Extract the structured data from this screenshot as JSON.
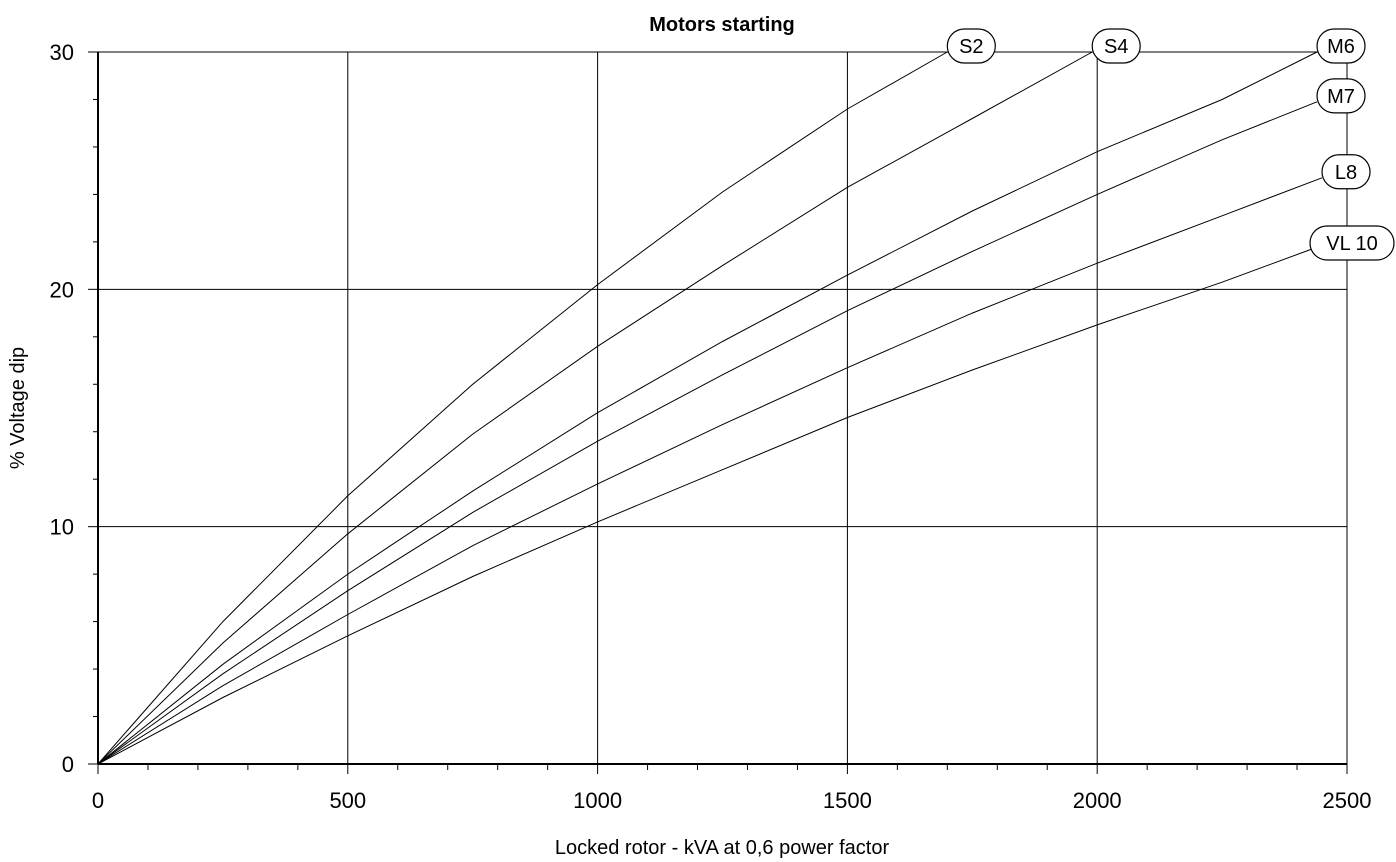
{
  "chart_data": {
    "type": "line",
    "title": "Motors starting",
    "xlabel": "Locked rotor - kVA at 0,6 power factor",
    "ylabel": "% Voltage dip",
    "xlim": [
      0,
      2500
    ],
    "ylim": [
      0,
      30
    ],
    "x_ticks": [
      0,
      500,
      1000,
      1500,
      2000,
      2500
    ],
    "y_ticks": [
      0,
      10,
      20,
      30
    ],
    "grid": true,
    "series": [
      {
        "name": "S2",
        "points": [
          [
            0,
            0
          ],
          [
            250,
            6
          ],
          [
            500,
            11.3
          ],
          [
            750,
            16
          ],
          [
            1000,
            20.2
          ],
          [
            1250,
            24.1
          ],
          [
            1500,
            27.6
          ],
          [
            1700,
            30
          ]
        ]
      },
      {
        "name": "S4",
        "points": [
          [
            0,
            0
          ],
          [
            250,
            5.1
          ],
          [
            500,
            9.7
          ],
          [
            750,
            13.9
          ],
          [
            1000,
            17.6
          ],
          [
            1250,
            21
          ],
          [
            1500,
            24.3
          ],
          [
            1750,
            27.2
          ],
          [
            1990,
            30
          ]
        ]
      },
      {
        "name": "M6",
        "points": [
          [
            0,
            0
          ],
          [
            250,
            4.2
          ],
          [
            500,
            8
          ],
          [
            750,
            11.5
          ],
          [
            1000,
            14.8
          ],
          [
            1250,
            17.8
          ],
          [
            1500,
            20.6
          ],
          [
            1750,
            23.3
          ],
          [
            2000,
            25.8
          ],
          [
            2250,
            28
          ],
          [
            2440,
            30
          ]
        ]
      },
      {
        "name": "M7",
        "points": [
          [
            0,
            0
          ],
          [
            250,
            3.8
          ],
          [
            500,
            7.3
          ],
          [
            750,
            10.6
          ],
          [
            1000,
            13.6
          ],
          [
            1250,
            16.4
          ],
          [
            1500,
            19.1
          ],
          [
            1750,
            21.6
          ],
          [
            2000,
            24
          ],
          [
            2250,
            26.3
          ],
          [
            2440,
            27.9
          ]
        ]
      },
      {
        "name": "L8",
        "points": [
          [
            0,
            0
          ],
          [
            250,
            3.3
          ],
          [
            500,
            6.3
          ],
          [
            750,
            9.2
          ],
          [
            1000,
            11.8
          ],
          [
            1250,
            14.3
          ],
          [
            1500,
            16.7
          ],
          [
            1750,
            19
          ],
          [
            2000,
            21.1
          ],
          [
            2250,
            23.1
          ],
          [
            2450,
            24.7
          ]
        ]
      },
      {
        "name": "VL 10",
        "points": [
          [
            0,
            0
          ],
          [
            250,
            2.8
          ],
          [
            500,
            5.4
          ],
          [
            750,
            7.9
          ],
          [
            1000,
            10.2
          ],
          [
            1250,
            12.4
          ],
          [
            1500,
            14.6
          ],
          [
            1750,
            16.6
          ],
          [
            2000,
            18.5
          ],
          [
            2250,
            20.3
          ],
          [
            2430,
            21.7
          ]
        ]
      }
    ]
  }
}
